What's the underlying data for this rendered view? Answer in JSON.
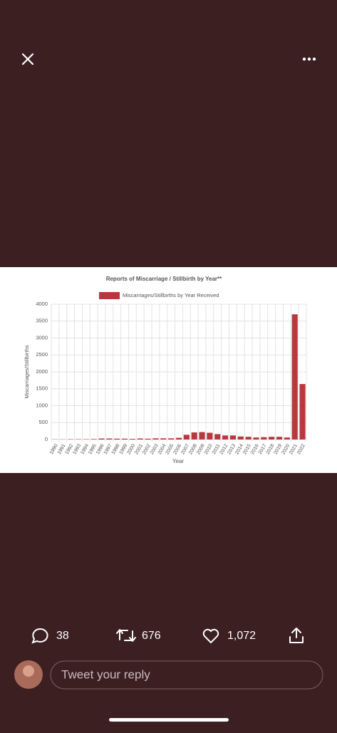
{
  "chart_data": {
    "type": "bar",
    "title": "Reports of Miscarriage / Stillbirth by Year**",
    "x_label": "Year",
    "y_label": "Miscarriages/Stillbirths",
    "categories": [
      "1990",
      "1991",
      "1992",
      "1993",
      "1994",
      "1995",
      "1996",
      "1997",
      "1998",
      "1999",
      "2000",
      "2001",
      "2002",
      "2003",
      "2004",
      "2005",
      "2006",
      "2007",
      "2008",
      "2009",
      "2010",
      "2011",
      "2012",
      "2013",
      "2014",
      "2015",
      "2016",
      "2017",
      "2018",
      "2019",
      "2020",
      "2021",
      "2022"
    ],
    "series": [
      {
        "name": "Miscarriages/Stillbirths by Year Received",
        "color": "#b8383f",
        "values": [
          5,
          5,
          10,
          10,
          10,
          15,
          30,
          30,
          25,
          25,
          20,
          30,
          25,
          35,
          35,
          35,
          50,
          140,
          210,
          220,
          200,
          160,
          120,
          120,
          90,
          80,
          60,
          70,
          80,
          80,
          60,
          3700,
          1640
        ]
      }
    ],
    "ylim": [
      0,
      4000
    ],
    "yticks": [
      0,
      500,
      1000,
      1500,
      2000,
      2500,
      3000,
      3500,
      4000
    ],
    "grid": true,
    "legend": "top"
  },
  "actions": {
    "replies": "38",
    "retweets": "676",
    "likes": "1,072"
  },
  "reply_box": {
    "placeholder": "Tweet your reply"
  }
}
